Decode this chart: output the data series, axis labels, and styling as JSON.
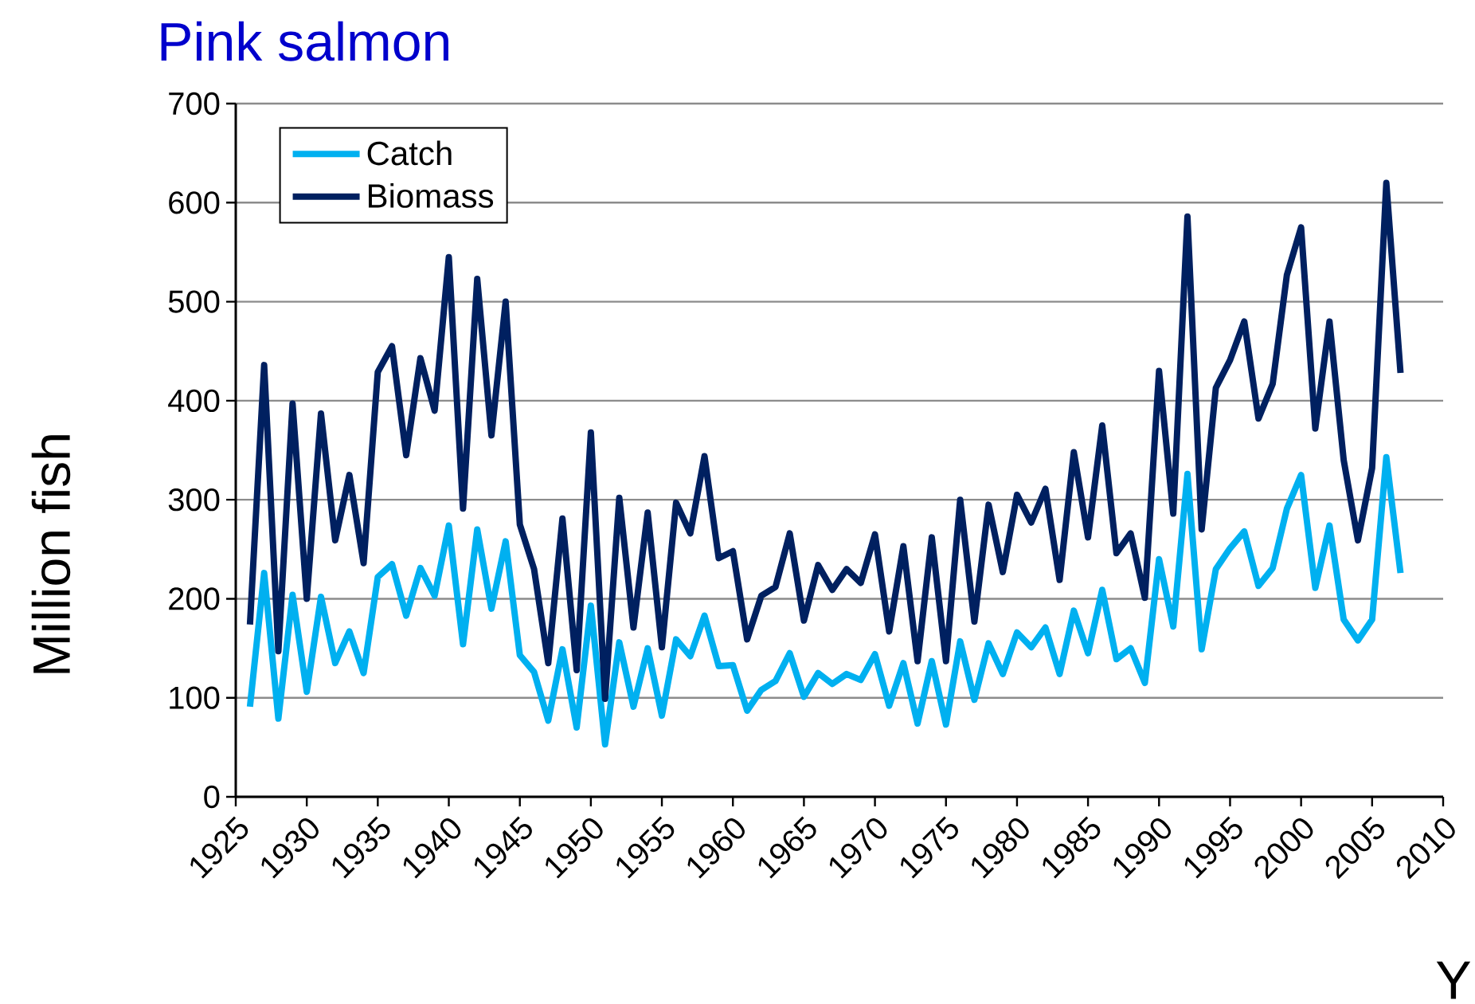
{
  "chart_data": {
    "type": "line",
    "title": "Pink salmon",
    "xlabel": "Y",
    "ylabel": "Million fish",
    "x": [
      1926,
      1927,
      1928,
      1929,
      1930,
      1931,
      1932,
      1933,
      1934,
      1935,
      1936,
      1937,
      1938,
      1939,
      1940,
      1941,
      1942,
      1943,
      1944,
      1945,
      1946,
      1947,
      1948,
      1949,
      1950,
      1951,
      1952,
      1953,
      1954,
      1955,
      1956,
      1957,
      1958,
      1959,
      1960,
      1961,
      1962,
      1963,
      1964,
      1965,
      1966,
      1967,
      1968,
      1969,
      1970,
      1971,
      1972,
      1973,
      1974,
      1975,
      1976,
      1977,
      1978,
      1979,
      1980,
      1981,
      1982,
      1983,
      1984,
      1985,
      1986,
      1987,
      1988,
      1989,
      1990,
      1991,
      1992,
      1993,
      1994,
      1995,
      1996,
      1997,
      1998,
      1999,
      2000,
      2001,
      2002,
      2003,
      2004,
      2005,
      2006,
      2007
    ],
    "series": [
      {
        "name": "Catch",
        "color": "#00b0f0",
        "values": [
          91,
          226,
          79,
          204,
          106,
          202,
          135,
          167,
          125,
          222,
          235,
          183,
          231,
          203,
          274,
          154,
          270,
          190,
          258,
          143,
          126,
          77,
          149,
          70,
          193,
          53,
          156,
          91,
          150,
          82,
          159,
          142,
          183,
          132,
          133,
          87,
          108,
          117,
          145,
          101,
          125,
          114,
          124,
          118,
          144,
          92,
          135,
          74,
          137,
          73,
          157,
          98,
          155,
          124,
          166,
          151,
          171,
          124,
          188,
          145,
          209,
          139,
          150,
          115,
          240,
          172,
          326,
          149,
          230,
          251,
          268,
          213,
          231,
          291,
          325,
          211,
          274,
          179,
          158,
          179,
          343,
          226
        ]
      },
      {
        "name": "Biomass",
        "color": "#002060",
        "values": [
          174,
          436,
          147,
          397,
          200,
          387,
          259,
          325,
          236,
          429,
          455,
          345,
          443,
          390,
          545,
          291,
          523,
          365,
          500,
          275,
          230,
          135,
          281,
          128,
          368,
          99,
          302,
          171,
          287,
          151,
          297,
          266,
          344,
          241,
          248,
          159,
          203,
          212,
          266,
          178,
          234,
          209,
          230,
          216,
          265,
          167,
          253,
          137,
          262,
          137,
          300,
          177,
          295,
          227,
          305,
          277,
          311,
          219,
          348,
          262,
          375,
          246,
          266,
          201,
          430,
          286,
          586,
          270,
          413,
          441,
          480,
          382,
          417,
          527,
          575,
          372,
          480,
          340,
          259,
          332,
          620,
          428
        ]
      }
    ],
    "xlim": [
      1925,
      2010
    ],
    "xticks": [
      1925,
      1930,
      1935,
      1940,
      1945,
      1950,
      1955,
      1960,
      1965,
      1970,
      1975,
      1980,
      1985,
      1990,
      1995,
      2000,
      2005,
      2010
    ],
    "ylim": [
      0,
      700
    ],
    "yticks": [
      0,
      100,
      200,
      300,
      400,
      500,
      600,
      700
    ],
    "grid": "y",
    "legend": "top left"
  }
}
